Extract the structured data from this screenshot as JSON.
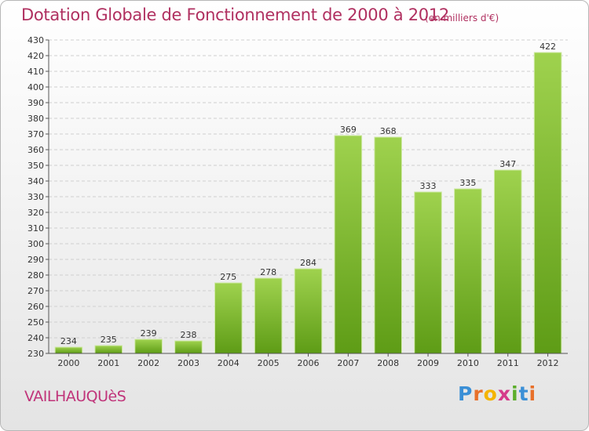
{
  "chart_data": {
    "type": "bar",
    "title": "Dotation Globale de Fonctionnement de 2000 à 2012",
    "subtitle": "(en milliers d'€)",
    "xlabel": "",
    "ylabel": "",
    "categories": [
      "2000",
      "2001",
      "2002",
      "2003",
      "2004",
      "2005",
      "2006",
      "2007",
      "2008",
      "2009",
      "2010",
      "2011",
      "2012"
    ],
    "values": [
      234,
      235,
      239,
      238,
      275,
      278,
      284,
      369,
      368,
      333,
      335,
      347,
      422
    ],
    "ylim": [
      230,
      430
    ],
    "yticks": [
      230,
      240,
      250,
      260,
      270,
      280,
      290,
      300,
      310,
      320,
      330,
      340,
      350,
      360,
      370,
      380,
      390,
      400,
      410,
      420,
      430
    ],
    "grid": true,
    "bar_color": "#7fbf2e"
  },
  "footer": {
    "commune": "VAILHAUQUèS",
    "logo_letters": [
      "P",
      "r",
      "o",
      "x",
      "i",
      "t",
      "i"
    ]
  }
}
